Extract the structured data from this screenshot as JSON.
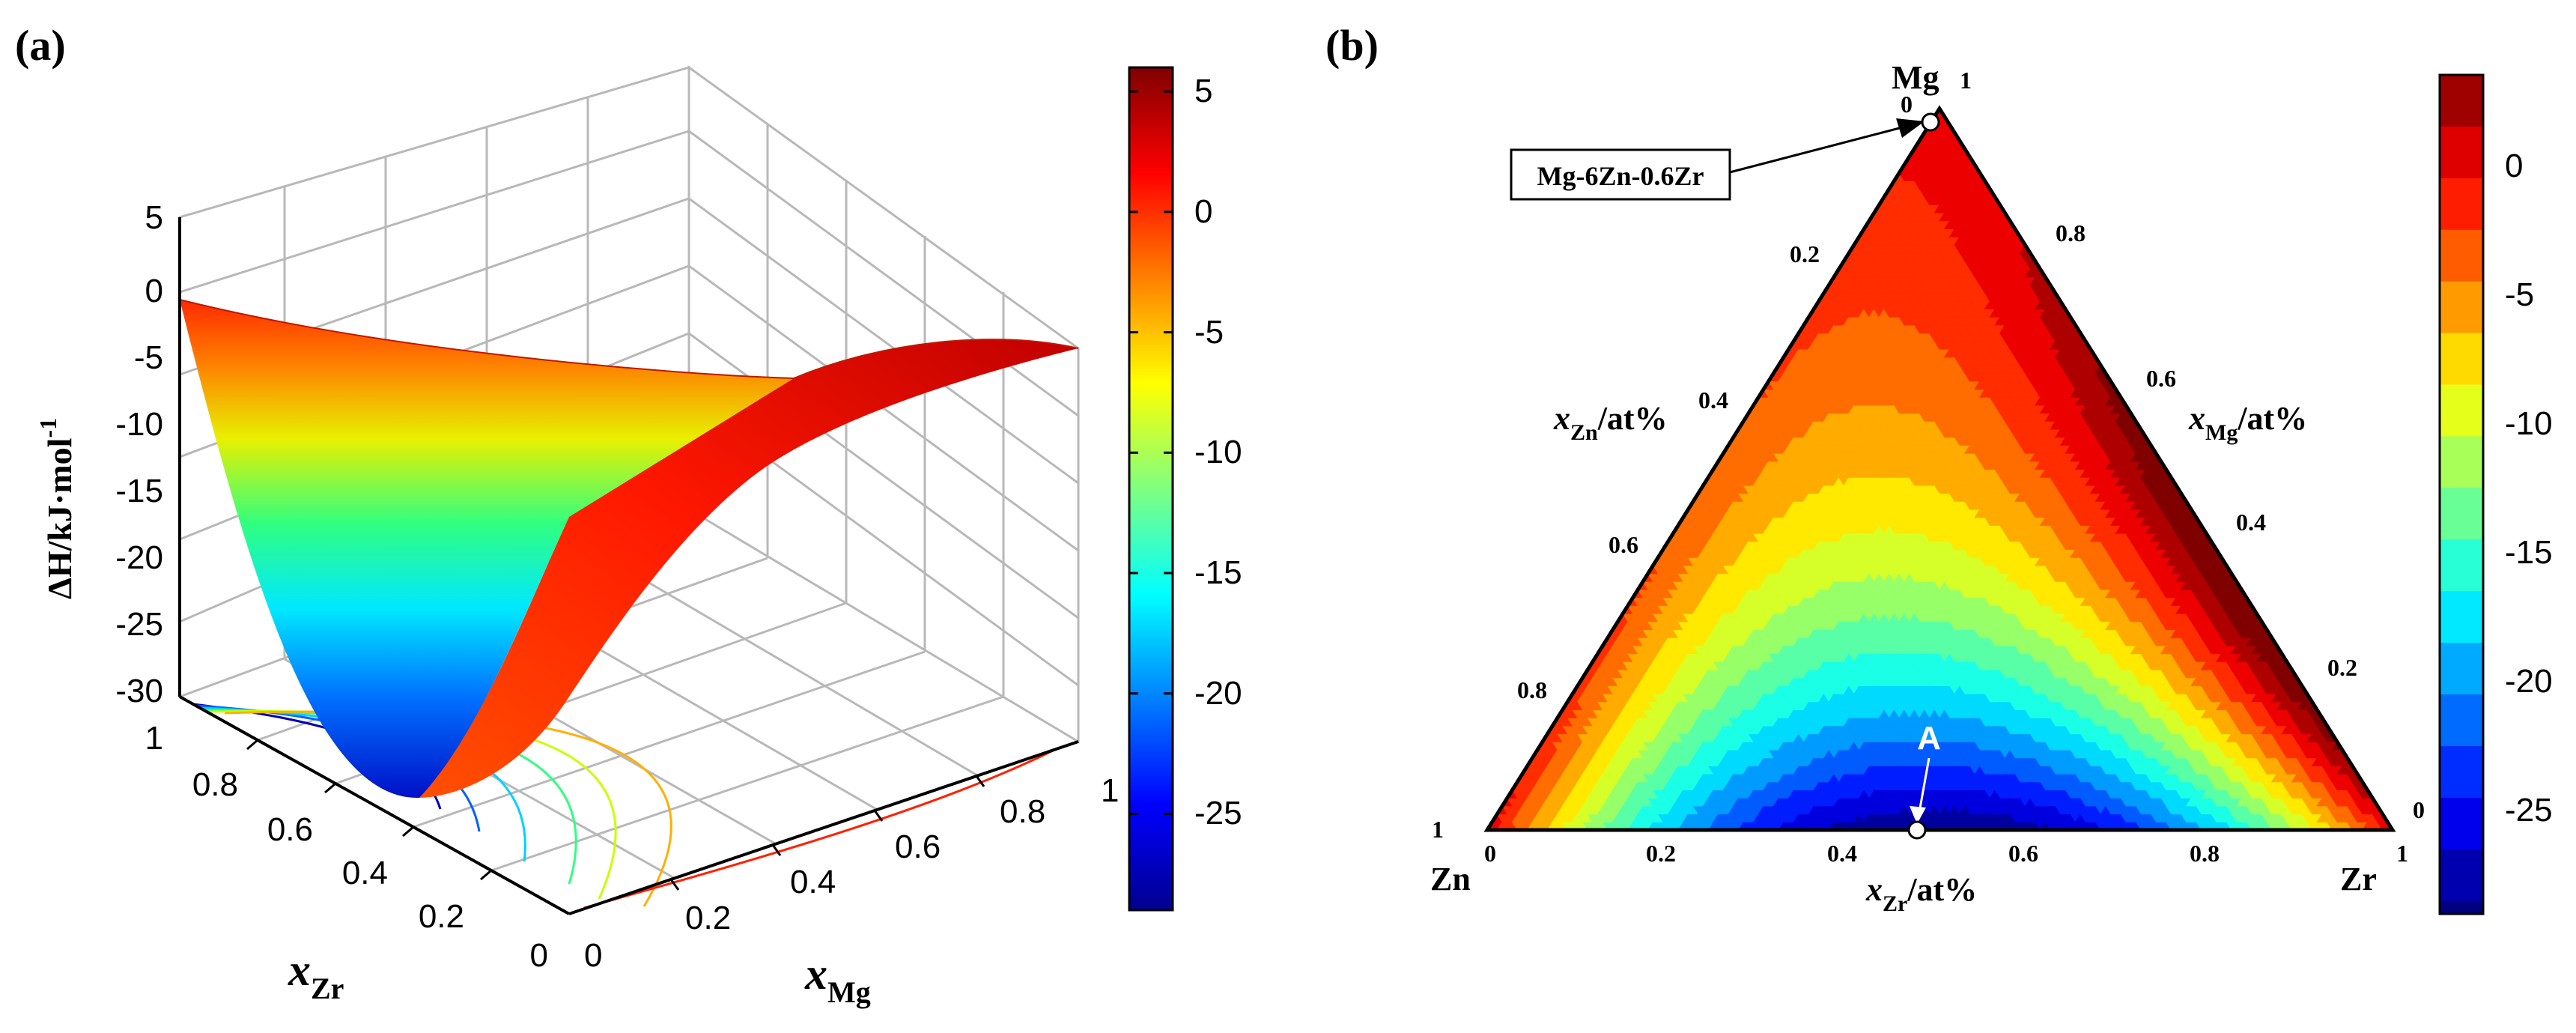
{
  "figure": {
    "panel_a_label": "(a)",
    "panel_b_label": "(b)"
  },
  "chart_data": [
    {
      "type": "surface3d",
      "panel": "(a)",
      "title": "",
      "zlabel_main": "ΔH/kJ·mol",
      "zlabel_sup": "-1",
      "xlabel": "x",
      "xlabel_sub": "Zr",
      "ylabel": "x",
      "ylabel_sub": "Mg",
      "zlim": [
        -30,
        5
      ],
      "z_ticks": [
        "5",
        "0",
        "-5",
        "-10",
        "-15",
        "-20",
        "-25",
        "-30"
      ],
      "x_ticks": [
        "1",
        "0.8",
        "0.6",
        "0.4",
        "0.2",
        "0"
      ],
      "y_ticks": [
        "0",
        "0.2",
        "0.4",
        "0.6",
        "0.8",
        "1"
      ],
      "surface_points": [
        {
          "xZr": 0.0,
          "xMg": 0.0,
          "dH": 0.0
        },
        {
          "xZr": 0.0,
          "xMg": 1.0,
          "dH": 0.0
        },
        {
          "xZr": 1.0,
          "xMg": 0.0,
          "dH": 0.0
        },
        {
          "xZr": 0.5,
          "xMg": 0.0,
          "dH": -29
        },
        {
          "xZr": 0.5,
          "xMg": 0.5,
          "dH": 3
        }
      ],
      "colorbar": {
        "range": [
          -29,
          6
        ],
        "ticks": [
          "5",
          "0",
          "-5",
          "-10",
          "-15",
          "-20",
          "-25"
        ],
        "colormap": "jet"
      },
      "grid": true
    },
    {
      "type": "ternary_contour",
      "panel": "(b)",
      "vertices": {
        "top": "Mg",
        "left": "Zn",
        "right": "Zr"
      },
      "vertex_values": {
        "top": "1",
        "left": "1",
        "right": "1"
      },
      "zero_labels": {
        "top": "0",
        "bottom_left": "0",
        "right": "0"
      },
      "left_axis_label": "x",
      "left_axis_sub": "Zn",
      "left_axis_unit": "/at%",
      "left_ticks": [
        "0.2",
        "0.4",
        "0.6",
        "0.8"
      ],
      "right_axis_label": "x",
      "right_axis_sub": "Mg",
      "right_axis_unit": "/at%",
      "right_ticks": [
        "0.8",
        "0.6",
        "0.4",
        "0.2"
      ],
      "bottom_axis_label": "x",
      "bottom_axis_sub": "Zr",
      "bottom_axis_unit": "/at%",
      "bottom_ticks": [
        "0.2",
        "0.4",
        "0.6",
        "0.8"
      ],
      "annotation_alloy": "Mg-6Zn-0.6Zr",
      "annotation_point": "A",
      "point_A": {
        "xZr": 0.45,
        "xZn": 0.55,
        "xMg": 0.0
      },
      "alloy_point": {
        "xMg": 0.992,
        "xZn": 0.006,
        "xZr": 0.002
      },
      "contour_interval": 2,
      "colorbar": {
        "range": [
          -29,
          3.5
        ],
        "ticks": [
          "0",
          "-5",
          "-10",
          "-15",
          "-20",
          "-25"
        ],
        "colormap": "jet"
      }
    }
  ]
}
